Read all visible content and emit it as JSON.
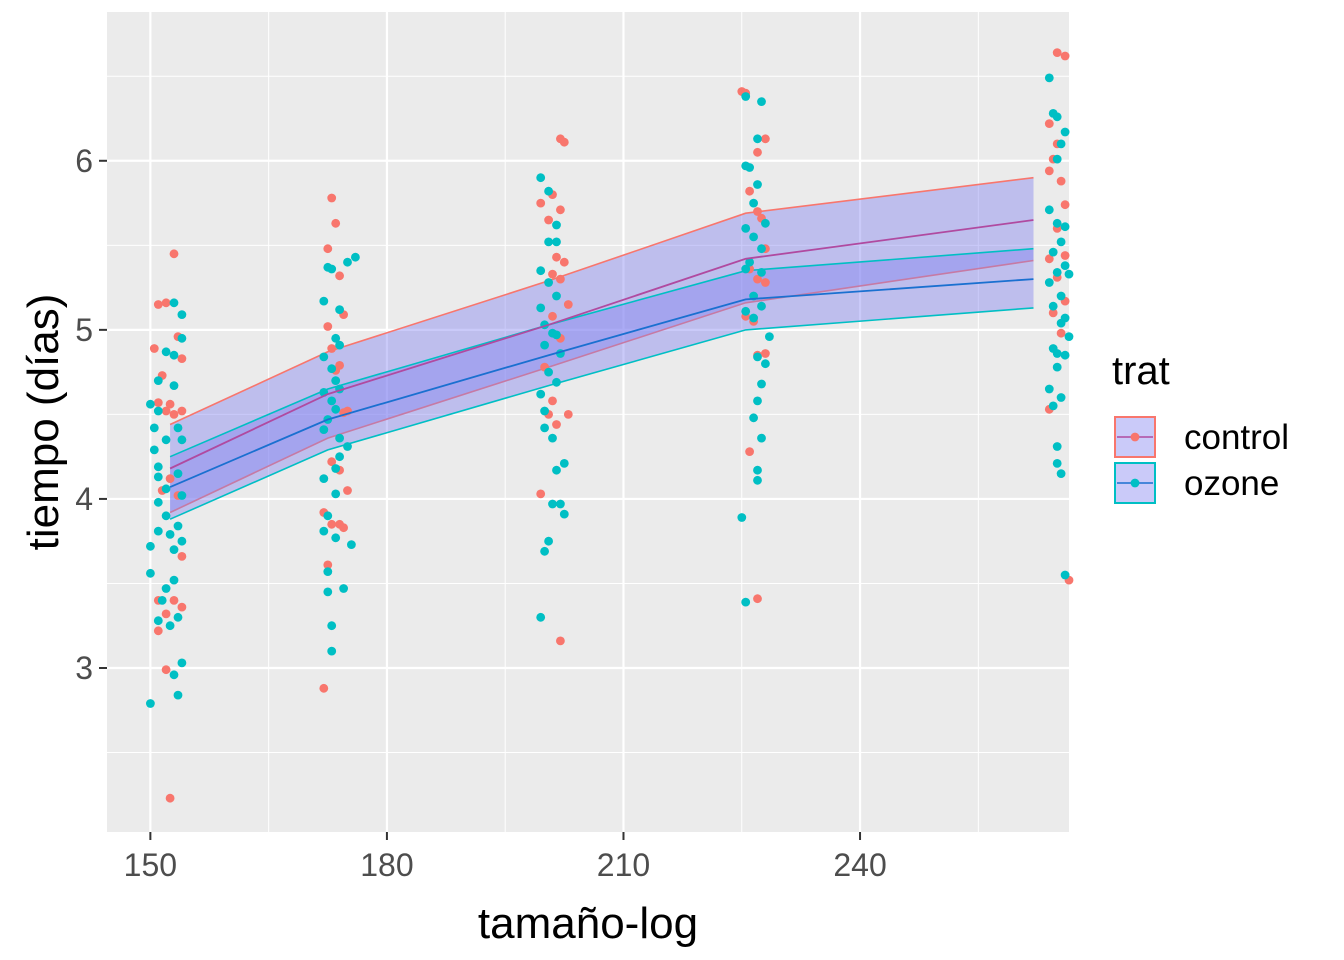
{
  "chart_data": {
    "type": "scatter",
    "xlabel": "tamaño-log",
    "ylabel": "tiempo (días)",
    "xlim": [
      144.5,
      266.5
    ],
    "ylim": [
      2.03,
      6.88
    ],
    "x_ticks": [
      150,
      180,
      210,
      240
    ],
    "y_ticks": [
      3,
      4,
      5,
      6
    ],
    "grid": true,
    "legend": {
      "title": "trat",
      "position": "right"
    },
    "colors": {
      "control": "#F8766D",
      "ozone": "#00BFC4",
      "band_fill": "#8080F0",
      "panel": "#EBEBEB",
      "grid": "#FFFFFF"
    },
    "series": [
      {
        "name": "control",
        "color": "#F8766D",
        "fit": {
          "x": [
            152.5,
            172.5,
            200.5,
            225.5,
            262.0
          ],
          "y": [
            4.18,
            4.62,
            5.03,
            5.42,
            5.65
          ],
          "lower": [
            3.92,
            4.36,
            4.78,
            5.16,
            5.41
          ],
          "upper": [
            4.44,
            4.87,
            5.29,
            5.69,
            5.9
          ]
        },
        "points": [
          [
            151,
            5.15
          ],
          [
            152,
            5.16
          ],
          [
            153,
            5.45
          ],
          [
            150.5,
            4.89
          ],
          [
            151.5,
            4.73
          ],
          [
            152.5,
            4.56
          ],
          [
            153.5,
            4.96
          ],
          [
            154,
            4.83
          ],
          [
            151,
            4.57
          ],
          [
            152,
            4.52
          ],
          [
            153,
            4.5
          ],
          [
            154,
            4.52
          ],
          [
            151.5,
            4.05
          ],
          [
            152.5,
            4.12
          ],
          [
            153.5,
            4.02
          ],
          [
            154,
            3.66
          ],
          [
            151,
            3.4
          ],
          [
            152,
            3.32
          ],
          [
            153,
            3.4
          ],
          [
            154,
            3.36
          ],
          [
            151,
            3.22
          ],
          [
            152,
            2.99
          ],
          [
            152.5,
            2.23
          ],
          [
            173,
            5.78
          ],
          [
            173.5,
            5.63
          ],
          [
            172.5,
            5.48
          ],
          [
            174,
            5.32
          ],
          [
            174.5,
            5.09
          ],
          [
            172.5,
            5.02
          ],
          [
            173,
            4.89
          ],
          [
            174,
            4.79
          ],
          [
            173.5,
            4.76
          ],
          [
            174.5,
            4.51
          ],
          [
            175,
            4.52
          ],
          [
            173,
            4.22
          ],
          [
            174,
            4.17
          ],
          [
            175,
            4.05
          ],
          [
            172,
            3.92
          ],
          [
            173,
            3.85
          ],
          [
            174,
            3.85
          ],
          [
            174.5,
            3.83
          ],
          [
            172.5,
            3.61
          ],
          [
            172,
            2.88
          ],
          [
            202,
            6.13
          ],
          [
            202.5,
            6.11
          ],
          [
            201,
            5.8
          ],
          [
            202,
            5.71
          ],
          [
            199.5,
            5.75
          ],
          [
            200.5,
            5.65
          ],
          [
            201.5,
            5.43
          ],
          [
            202.5,
            5.4
          ],
          [
            201,
            5.33
          ],
          [
            202,
            5.3
          ],
          [
            203,
            5.15
          ],
          [
            201,
            5.08
          ],
          [
            202,
            4.95
          ],
          [
            200,
            4.78
          ],
          [
            201,
            4.58
          ],
          [
            200.5,
            4.5
          ],
          [
            201.5,
            4.44
          ],
          [
            203,
            4.5
          ],
          [
            199.5,
            4.03
          ],
          [
            202,
            3.16
          ],
          [
            225,
            6.41
          ],
          [
            225.5,
            6.4
          ],
          [
            227,
            6.05
          ],
          [
            228,
            6.13
          ],
          [
            226,
            5.82
          ],
          [
            227,
            5.7
          ],
          [
            227.5,
            5.66
          ],
          [
            228,
            5.48
          ],
          [
            226,
            5.36
          ],
          [
            227,
            5.3
          ],
          [
            228,
            5.28
          ],
          [
            225.5,
            5.08
          ],
          [
            226.5,
            5.05
          ],
          [
            227,
            4.85
          ],
          [
            228,
            4.86
          ],
          [
            226,
            4.28
          ],
          [
            227,
            3.41
          ],
          [
            265,
            6.64
          ],
          [
            266,
            6.62
          ],
          [
            264,
            6.22
          ],
          [
            265,
            6.1
          ],
          [
            264.5,
            6.01
          ],
          [
            265.5,
            5.88
          ],
          [
            264,
            5.94
          ],
          [
            266,
            5.74
          ],
          [
            265,
            5.6
          ],
          [
            266,
            5.44
          ],
          [
            264,
            5.42
          ],
          [
            265,
            5.31
          ],
          [
            266,
            5.17
          ],
          [
            264.5,
            5.1
          ],
          [
            265.5,
            4.98
          ],
          [
            264,
            4.53
          ],
          [
            266.5,
            3.52
          ]
        ]
      },
      {
        "name": "ozone",
        "color": "#00BFC4",
        "fit": {
          "x": [
            152.5,
            172.5,
            200.5,
            225.5,
            262.0
          ],
          "y": [
            4.07,
            4.47,
            4.85,
            5.18,
            5.3
          ],
          "lower": [
            3.88,
            4.29,
            4.67,
            5.0,
            5.13
          ],
          "upper": [
            4.25,
            4.65,
            5.03,
            5.35,
            5.48
          ]
        },
        "points": [
          [
            153,
            5.16
          ],
          [
            154,
            5.09
          ],
          [
            154,
            4.95
          ],
          [
            152,
            4.87
          ],
          [
            153,
            4.85
          ],
          [
            151,
            4.7
          ],
          [
            153,
            4.67
          ],
          [
            150,
            4.56
          ],
          [
            151,
            4.52
          ],
          [
            153.5,
            4.42
          ],
          [
            150.5,
            4.42
          ],
          [
            152,
            4.35
          ],
          [
            154,
            4.35
          ],
          [
            150.5,
            4.29
          ],
          [
            151,
            4.19
          ],
          [
            153.5,
            4.15
          ],
          [
            151,
            4.13
          ],
          [
            152,
            4.06
          ],
          [
            154,
            4.02
          ],
          [
            151,
            3.98
          ],
          [
            152,
            3.9
          ],
          [
            153.5,
            3.84
          ],
          [
            151,
            3.81
          ],
          [
            152.5,
            3.79
          ],
          [
            150,
            3.72
          ],
          [
            153,
            3.7
          ],
          [
            154,
            3.75
          ],
          [
            150,
            3.56
          ],
          [
            153,
            3.52
          ],
          [
            152,
            3.47
          ],
          [
            151.5,
            3.4
          ],
          [
            153.5,
            3.3
          ],
          [
            151,
            3.28
          ],
          [
            152.5,
            3.25
          ],
          [
            154,
            3.03
          ],
          [
            153,
            2.96
          ],
          [
            153.5,
            2.84
          ],
          [
            150,
            2.79
          ],
          [
            176,
            5.43
          ],
          [
            175,
            5.4
          ],
          [
            172.5,
            5.37
          ],
          [
            173,
            5.36
          ],
          [
            172,
            5.17
          ],
          [
            174,
            5.12
          ],
          [
            173.5,
            4.95
          ],
          [
            174,
            4.91
          ],
          [
            172,
            4.84
          ],
          [
            173,
            4.77
          ],
          [
            173.5,
            4.7
          ],
          [
            174,
            4.65
          ],
          [
            172,
            4.63
          ],
          [
            173,
            4.58
          ],
          [
            173.5,
            4.53
          ],
          [
            172.5,
            4.47
          ],
          [
            172,
            4.41
          ],
          [
            174,
            4.36
          ],
          [
            175,
            4.31
          ],
          [
            174,
            4.25
          ],
          [
            173.5,
            4.18
          ],
          [
            172,
            4.12
          ],
          [
            173.5,
            4.03
          ],
          [
            172.5,
            3.9
          ],
          [
            172,
            3.81
          ],
          [
            173.5,
            3.77
          ],
          [
            175.5,
            3.73
          ],
          [
            172.5,
            3.57
          ],
          [
            172.5,
            3.45
          ],
          [
            174.5,
            3.47
          ],
          [
            173,
            3.25
          ],
          [
            173,
            3.1
          ],
          [
            199.5,
            5.9
          ],
          [
            200.5,
            5.82
          ],
          [
            201.5,
            5.62
          ],
          [
            200.5,
            5.52
          ],
          [
            201.5,
            5.52
          ],
          [
            199.5,
            5.35
          ],
          [
            200.5,
            5.28
          ],
          [
            201.5,
            5.2
          ],
          [
            199.5,
            5.13
          ],
          [
            200,
            5.03
          ],
          [
            201,
            4.98
          ],
          [
            201.5,
            4.97
          ],
          [
            200,
            4.91
          ],
          [
            202,
            4.86
          ],
          [
            200.5,
            4.75
          ],
          [
            201.5,
            4.69
          ],
          [
            199.5,
            4.62
          ],
          [
            200,
            4.52
          ],
          [
            201,
            4.36
          ],
          [
            200,
            4.42
          ],
          [
            202.5,
            4.21
          ],
          [
            201.5,
            4.17
          ],
          [
            201,
            3.97
          ],
          [
            202,
            3.97
          ],
          [
            202.5,
            3.91
          ],
          [
            200,
            3.69
          ],
          [
            200.5,
            3.75
          ],
          [
            199.5,
            3.3
          ],
          [
            225.5,
            6.38
          ],
          [
            227.5,
            6.35
          ],
          [
            227,
            6.13
          ],
          [
            226,
            5.96
          ],
          [
            225.5,
            5.97
          ],
          [
            227,
            5.86
          ],
          [
            226.5,
            5.75
          ],
          [
            228,
            5.63
          ],
          [
            225.5,
            5.6
          ],
          [
            226.5,
            5.55
          ],
          [
            227.5,
            5.48
          ],
          [
            226,
            5.4
          ],
          [
            225.5,
            5.36
          ],
          [
            227.5,
            5.34
          ],
          [
            226.5,
            5.2
          ],
          [
            227.5,
            5.14
          ],
          [
            225.5,
            5.11
          ],
          [
            226.5,
            5.07
          ],
          [
            228.5,
            4.96
          ],
          [
            227,
            4.84
          ],
          [
            228,
            4.8
          ],
          [
            227.5,
            4.68
          ],
          [
            227,
            4.58
          ],
          [
            226.5,
            4.48
          ],
          [
            227.5,
            4.36
          ],
          [
            227,
            4.17
          ],
          [
            227,
            4.11
          ],
          [
            225,
            3.89
          ],
          [
            225.5,
            3.39
          ],
          [
            264,
            6.49
          ],
          [
            264.5,
            6.28
          ],
          [
            265,
            6.26
          ],
          [
            266,
            6.17
          ],
          [
            265.5,
            6.1
          ],
          [
            265,
            6.01
          ],
          [
            264,
            5.71
          ],
          [
            265,
            5.63
          ],
          [
            266,
            5.61
          ],
          [
            265.5,
            5.52
          ],
          [
            264.5,
            5.46
          ],
          [
            266,
            5.38
          ],
          [
            265,
            5.34
          ],
          [
            264,
            5.28
          ],
          [
            266.5,
            5.33
          ],
          [
            265.5,
            5.2
          ],
          [
            264.5,
            5.14
          ],
          [
            266,
            5.07
          ],
          [
            265.5,
            5.04
          ],
          [
            266.5,
            4.96
          ],
          [
            264.5,
            4.89
          ],
          [
            265,
            4.86
          ],
          [
            266,
            4.85
          ],
          [
            265,
            4.78
          ],
          [
            264,
            4.65
          ],
          [
            265.5,
            4.6
          ],
          [
            264.5,
            4.55
          ],
          [
            265,
            4.31
          ],
          [
            265,
            4.21
          ],
          [
            265.5,
            4.15
          ],
          [
            266,
            3.55
          ]
        ]
      }
    ]
  }
}
